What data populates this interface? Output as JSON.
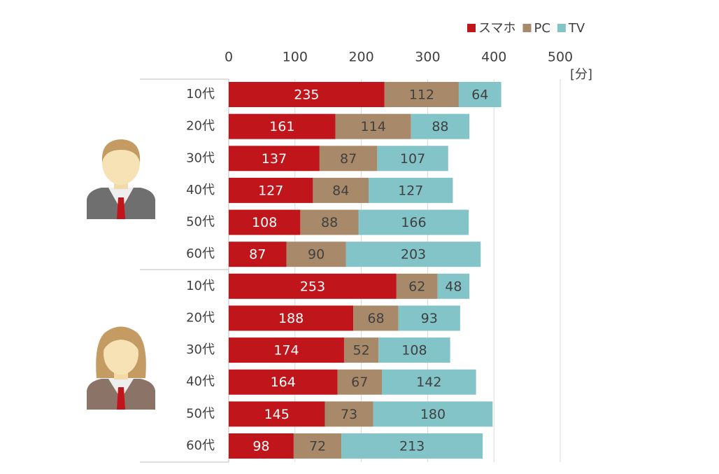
{
  "chart_data": {
    "type": "stacked-bar-horizontal",
    "x_label": "[分]",
    "categories": [
      "10代",
      "20代",
      "30代",
      "40代",
      "50代",
      "60代",
      "10代",
      "20代",
      "30代",
      "40代",
      "50代",
      "60代"
    ],
    "series": [
      {
        "name": "スマホ",
        "color": "#c0161b",
        "values": [
          235,
          161,
          137,
          127,
          108,
          87,
          253,
          188,
          174,
          164,
          145,
          98
        ]
      },
      {
        "name": "PC",
        "color": "#a88a6a",
        "values": [
          112,
          114,
          87,
          84,
          88,
          90,
          62,
          68,
          52,
          67,
          73,
          72
        ]
      },
      {
        "name": "TV",
        "color": "#82c4c8",
        "values": [
          64,
          88,
          107,
          127,
          166,
          203,
          48,
          93,
          108,
          142,
          180,
          213
        ]
      }
    ],
    "xlim": [
      0,
      500
    ],
    "xticks": [
      0,
      100,
      200,
      300,
      400,
      500
    ],
    "grid": true,
    "legend": "top-right"
  }
}
